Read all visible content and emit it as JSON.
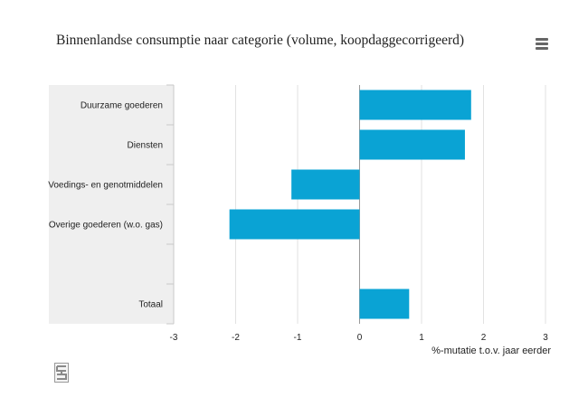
{
  "title": "Binnenlandse consumptie naar categorie (volume, koopdaggecorrigeerd)",
  "menu_icon": "hamburger-menu-icon",
  "logo_icon": "cbs-logo-icon",
  "colors": {
    "bar": "#0aa3d4",
    "label_band": "#efefef",
    "grid": "#e2e2e2",
    "zero_line": "#999999",
    "text": "#222222"
  },
  "chart_data": {
    "type": "bar",
    "orientation": "horizontal",
    "categories": [
      "Duurzame goederen",
      "Diensten",
      "Voedings- en genotmiddelen",
      "Overige goederen (w.o. gas)",
      "",
      "Totaal"
    ],
    "values": [
      1.8,
      1.7,
      -1.1,
      -2.1,
      null,
      0.8
    ],
    "xlabel": "%-mutatie t.o.v. jaar eerder",
    "ylabel": "",
    "xlim": [
      -3,
      3
    ],
    "xticks": [
      "-3",
      "-2",
      "-1",
      "0",
      "1",
      "2",
      "3"
    ],
    "grid": true,
    "legend": "none"
  }
}
